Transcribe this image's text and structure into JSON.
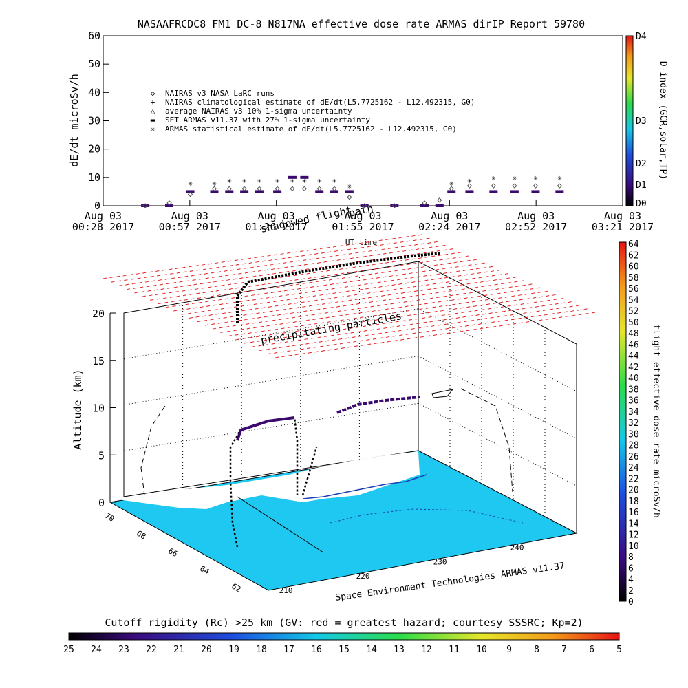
{
  "title": "NASAAFRCDC8_FM1 DC-8   N817NA effective dose rate ARMAS_dirIP_Report_59780",
  "top_panel": {
    "ylabel": "dE/dt microSv/h",
    "xlabel": "UT time",
    "yticks": [
      "0",
      "10",
      "20",
      "30",
      "40",
      "50",
      "60"
    ],
    "xticks": [
      {
        "l1": "Aug 03",
        "l2": "00:28 2017"
      },
      {
        "l1": "Aug 03",
        "l2": "00:57 2017"
      },
      {
        "l1": "Aug 03",
        "l2": "01:26 2017"
      },
      {
        "l1": "Aug 03",
        "l2": "01:55 2017"
      },
      {
        "l1": "Aug 03",
        "l2": "02:24 2017"
      },
      {
        "l1": "Aug 03",
        "l2": "02:52 2017"
      },
      {
        "l1": "Aug 03",
        "l2": "03:21 2017"
      }
    ],
    "legend": [
      {
        "symbol": "◇",
        "text": "NAIRAS v3 NASA LaRC runs"
      },
      {
        "symbol": "+",
        "text": "NAIRAS climatological estimate of dE/dt(L5.7725162 - L12.492315, G0)"
      },
      {
        "symbol": "△",
        "text": "average NAIRAS v3 10% 1-sigma uncertainty"
      },
      {
        "symbol": "▬",
        "text": "SET ARMAS v11.37 with 27% 1-sigma uncertainty"
      },
      {
        "symbol": "✳",
        "text": "ARMAS statistical estimate of dE/dt(L5.7725162 - L12.492315, G0)"
      }
    ],
    "overlay_text": {
      "shadowed": "shadowed flight",
      "path": "path"
    },
    "dindex": {
      "label": "D-index (GCR,solar,TP)",
      "ticks": [
        "D4",
        "D3",
        "D2",
        "D1",
        "D0"
      ]
    }
  },
  "bottom_panel": {
    "zlabel": "Altitude (km)",
    "zticks": [
      "0",
      "5",
      "10",
      "15",
      "20"
    ],
    "lat_ticks": [
      "70",
      "68",
      "66",
      "64",
      "62"
    ],
    "lon_ticks": [
      "210",
      "220",
      "230",
      "240"
    ],
    "precip_label": "precipitating particles",
    "credit": "Space Environment Technologies ARMAS v11.37",
    "dose_colorbar": {
      "label": "flight effective dose rate microSv/h",
      "ticks": [
        "64",
        "62",
        "60",
        "58",
        "56",
        "54",
        "52",
        "50",
        "48",
        "46",
        "44",
        "42",
        "40",
        "38",
        "36",
        "34",
        "32",
        "30",
        "28",
        "26",
        "24",
        "22",
        "20",
        "18",
        "16",
        "14",
        "12",
        "10",
        "8",
        "6",
        "4",
        "2",
        "0"
      ]
    }
  },
  "cutoff_bar": {
    "label": "Cutoff rigidity (Rc) >25 km (GV: red = greatest hazard; courtesy SSSRC; Kp=2)",
    "ticks": [
      "25",
      "24",
      "23",
      "22",
      "21",
      "20",
      "19",
      "18",
      "17",
      "16",
      "15",
      "14",
      "13",
      "12",
      "11",
      "10",
      "9",
      "8",
      "7",
      "6",
      "5"
    ]
  },
  "colors": {
    "set_armas": "#3a0a6e",
    "precip": "#e02020",
    "ground": "#1ec8f0",
    "land": "#ffffff"
  },
  "chart_data": {
    "type": "scatter",
    "title": "NASAAFRCDC8_FM1 DC-8   N817NA effective dose rate ARMAS_dirIP_Report_59780",
    "xlabel": "UT time",
    "ylabel": "dE/dt microSv/h",
    "ylim": [
      0,
      60
    ],
    "x": [
      "00:28",
      "00:42",
      "00:50",
      "00:57",
      "01:05",
      "01:10",
      "01:15",
      "01:20",
      "01:26",
      "01:31",
      "01:35",
      "01:40",
      "01:45",
      "01:50",
      "01:55",
      "02:05",
      "02:15",
      "02:20",
      "02:24",
      "02:30",
      "02:38",
      "02:45",
      "02:52",
      "03:00"
    ],
    "series": [
      {
        "name": "SET ARMAS v11.37 with 27% 1-sigma uncertainty",
        "values": [
          null,
          0,
          0,
          5,
          5,
          5,
          5,
          5,
          5,
          10,
          10,
          5,
          5,
          5,
          0,
          0,
          0,
          0,
          5,
          5,
          5,
          5,
          5,
          5
        ]
      },
      {
        "name": "ARMAS statistical estimate of dE/dt(L5.7725162 - L12.492315, G0)",
        "values": [
          null,
          null,
          null,
          8,
          8,
          9,
          9,
          9,
          9,
          9,
          9,
          9,
          9,
          7,
          null,
          null,
          null,
          null,
          8,
          9,
          10,
          10,
          10,
          10
        ]
      },
      {
        "name": "NAIRAS v3 NASA LaRC runs",
        "values": [
          null,
          0,
          1,
          4,
          6,
          6,
          6,
          6,
          6,
          6,
          6,
          6,
          6,
          3,
          0,
          0,
          1,
          2,
          6,
          7,
          7,
          7,
          7,
          7
        ]
      }
    ],
    "grid": false,
    "legend": "top-left"
  }
}
